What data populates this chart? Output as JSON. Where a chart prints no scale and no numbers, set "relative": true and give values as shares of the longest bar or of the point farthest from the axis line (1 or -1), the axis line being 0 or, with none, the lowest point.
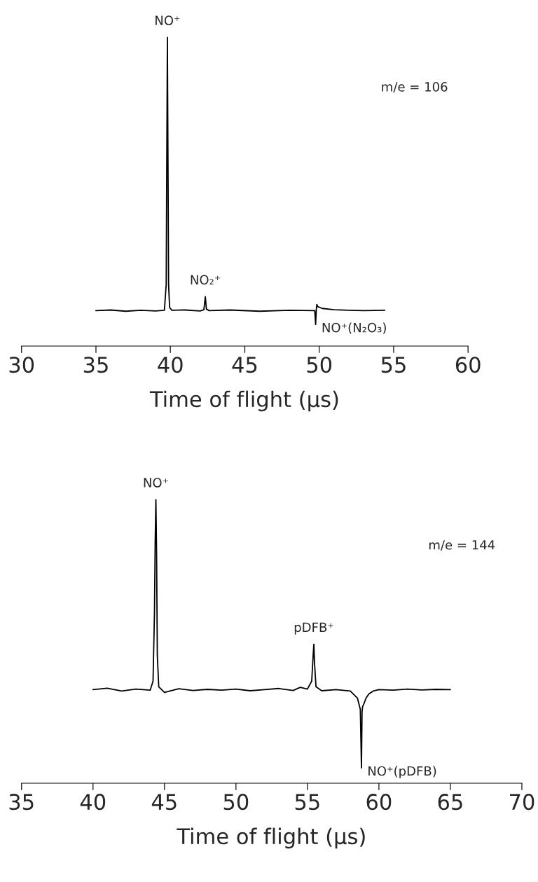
{
  "chart_data": [
    {
      "type": "line",
      "relative": true,
      "xlabel": "Time of flight (μs)",
      "xlim": [
        30,
        60
      ],
      "xticks": [
        30,
        35,
        40,
        45,
        50,
        55,
        60
      ],
      "tick_labels": "x",
      "grid": false,
      "legend": false,
      "series": [
        {
          "color": "#000000",
          "x": [
            35,
            36,
            37,
            38,
            39,
            39.6,
            39.72,
            39.76,
            39.8,
            39.84,
            39.88,
            39.95,
            40.1,
            41,
            42,
            42.25,
            42.35,
            42.42,
            42.6,
            44,
            46,
            48,
            49.7,
            49.76,
            49.8,
            49.84,
            49.9,
            50.2,
            51,
            52,
            53,
            54.4
          ],
          "values": [
            0.115,
            0.117,
            0.113,
            0.116,
            0.114,
            0.116,
            0.2,
            0.6,
            1.0,
            0.6,
            0.2,
            0.125,
            0.116,
            0.117,
            0.114,
            0.118,
            0.16,
            0.12,
            0.115,
            0.117,
            0.113,
            0.116,
            0.115,
            0.07,
            0.115,
            0.135,
            0.128,
            0.122,
            0.118,
            0.116,
            0.115,
            0.116
          ]
        }
      ],
      "annotations": [
        {
          "text": "NO⁺",
          "x": 39.8,
          "y": 1.0
        },
        {
          "text": "NO₂⁺",
          "x": 42.35,
          "y": 0.16
        },
        {
          "text": "NO⁺(N₂O₃)",
          "x": 49.76,
          "y": 0.07
        },
        "m/e = 106"
      ]
    },
    {
      "type": "line",
      "relative": true,
      "xlabel": "Time of flight (μs)",
      "xlim": [
        35,
        70
      ],
      "xticks": [
        35,
        40,
        45,
        50,
        55,
        60,
        65,
        70
      ],
      "tick_labels": "x",
      "grid": false,
      "legend": false,
      "series": [
        {
          "color": "#000000",
          "x": [
            40,
            41,
            42,
            43,
            44,
            44.2,
            44.3,
            44.35,
            44.4,
            44.45,
            44.5,
            44.6,
            45,
            46,
            47,
            48,
            49,
            50,
            51,
            52,
            53,
            54,
            54.5,
            55,
            55.3,
            55.4,
            55.45,
            55.5,
            55.6,
            56,
            57,
            58,
            58.5,
            58.7,
            58.78,
            58.82,
            58.86,
            58.95,
            59.1,
            59.3,
            59.6,
            60,
            61,
            62,
            63,
            64,
            65
          ],
          "values": [
            0.33,
            0.335,
            0.325,
            0.332,
            0.328,
            0.36,
            0.6,
            0.85,
            1.0,
            0.8,
            0.45,
            0.34,
            0.32,
            0.333,
            0.327,
            0.331,
            0.328,
            0.332,
            0.326,
            0.33,
            0.334,
            0.327,
            0.338,
            0.332,
            0.36,
            0.45,
            0.49,
            0.42,
            0.34,
            0.326,
            0.33,
            0.325,
            0.3,
            0.26,
            0.054,
            0.25,
            0.27,
            0.28,
            0.3,
            0.315,
            0.325,
            0.33,
            0.328,
            0.332,
            0.329,
            0.331,
            0.33
          ]
        }
      ],
      "annotations": [
        {
          "text": "NO⁺",
          "x": 44.4,
          "y": 1.0
        },
        {
          "text": "pDFB⁺",
          "x": 55.45,
          "y": 0.49
        },
        {
          "text": "NO⁺(pDFB)",
          "x": 58.78,
          "y": 0.054
        },
        "m/e = 144"
      ]
    }
  ]
}
